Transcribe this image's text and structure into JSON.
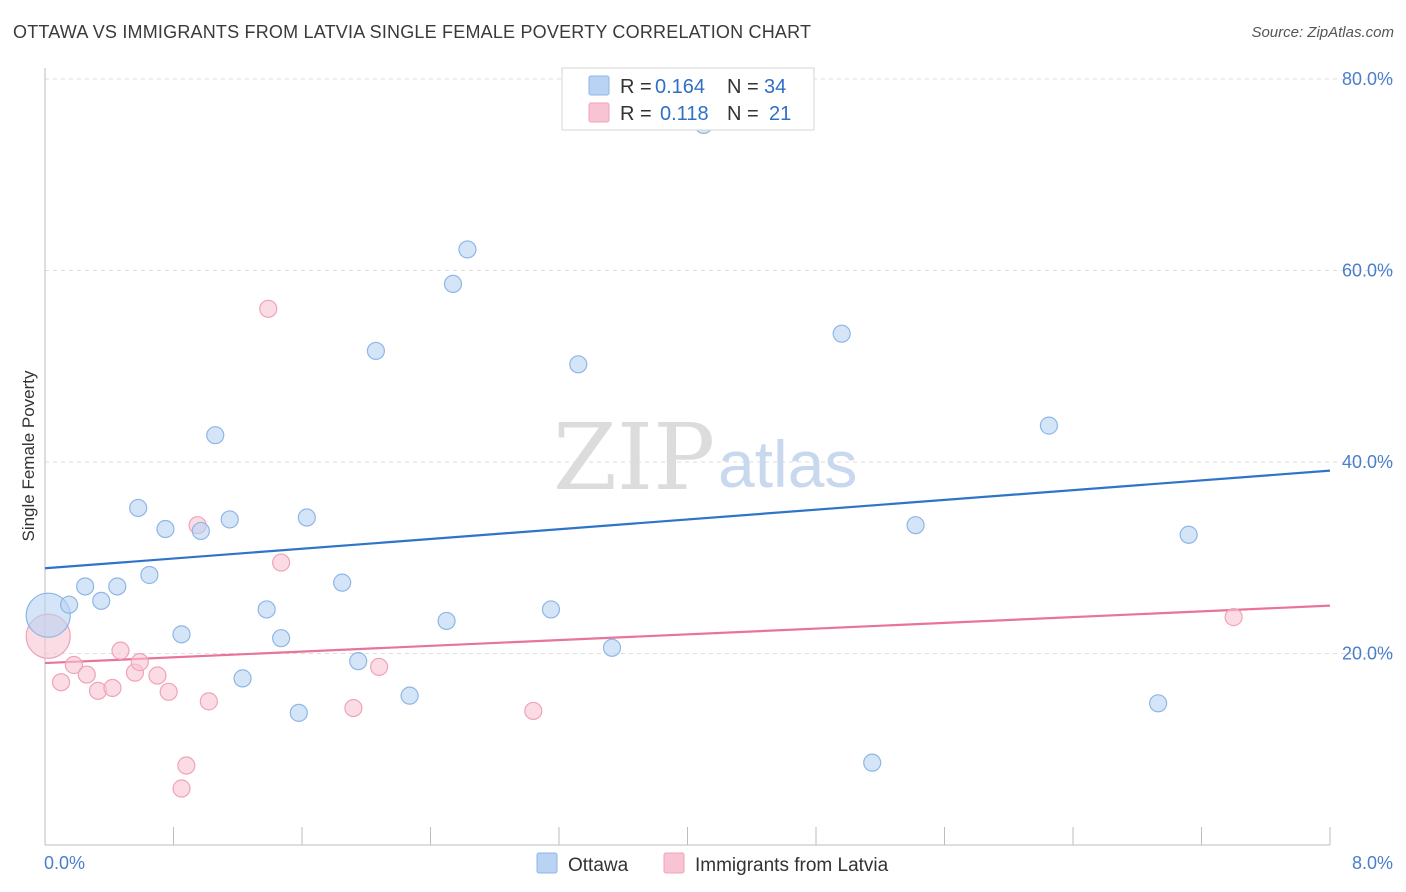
{
  "title": "OTTAWA VS IMMIGRANTS FROM LATVIA SINGLE FEMALE POVERTY CORRELATION CHART",
  "source": "Source: ZipAtlas.com",
  "watermark": {
    "zip": "ZIP",
    "atlas": "atlas"
  },
  "colors": {
    "blue_fill": "#b8d3f3",
    "blue_stroke": "#8fb6e6",
    "blue_line": "#2f74c9",
    "pink_fill": "#f8c4d3",
    "pink_stroke": "#f0a3b8",
    "pink_line": "#e8749a",
    "tick_text": "#4a7ecb",
    "grid": "#dddddd"
  },
  "legend": {
    "rows": [
      {
        "r_label": "R =",
        "r_value": "0.164",
        "n_label": "N =",
        "n_value": "34"
      },
      {
        "r_label": "R =",
        "r_value": "0.118",
        "n_label": "N =",
        "n_value": "21"
      }
    ]
  },
  "bottom_legend": [
    {
      "label": "Ottawa"
    },
    {
      "label": "Immigrants from Latvia"
    }
  ],
  "chart_data": {
    "type": "scatter",
    "title": "OTTAWA VS IMMIGRANTS FROM LATVIA SINGLE FEMALE POVERTY CORRELATION CHART",
    "xlabel": "",
    "ylabel": "Single Female Poverty",
    "xlim": [
      0,
      8
    ],
    "ylim": [
      0,
      80
    ],
    "x_tick_labels": [
      "0.0%",
      "8.0%"
    ],
    "y_ticks": [
      20,
      40,
      60,
      80
    ],
    "y_tick_labels": [
      "20.0%",
      "40.0%",
      "60.0%",
      "80.0%"
    ],
    "grid": true,
    "legend_position": "top-center",
    "series": [
      {
        "name": "Ottawa",
        "r": 0.164,
        "n": 34,
        "trend": {
          "x0": 0,
          "y0": 28.9,
          "x1": 8,
          "y1": 39.1
        },
        "points": [
          {
            "x": 0.02,
            "y": 24.0,
            "big": true
          },
          {
            "x": 0.15,
            "y": 25.1
          },
          {
            "x": 0.25,
            "y": 27.0
          },
          {
            "x": 0.35,
            "y": 25.5
          },
          {
            "x": 0.45,
            "y": 27.0
          },
          {
            "x": 0.58,
            "y": 35.2
          },
          {
            "x": 0.65,
            "y": 28.2
          },
          {
            "x": 0.75,
            "y": 33.0
          },
          {
            "x": 0.85,
            "y": 22.0
          },
          {
            "x": 0.97,
            "y": 32.8
          },
          {
            "x": 1.06,
            "y": 42.8
          },
          {
            "x": 1.15,
            "y": 34.0
          },
          {
            "x": 1.23,
            "y": 17.4
          },
          {
            "x": 1.38,
            "y": 24.6
          },
          {
            "x": 1.47,
            "y": 21.6
          },
          {
            "x": 1.58,
            "y": 13.8
          },
          {
            "x": 1.63,
            "y": 34.2
          },
          {
            "x": 1.85,
            "y": 27.4
          },
          {
            "x": 1.95,
            "y": 19.2
          },
          {
            "x": 2.06,
            "y": 51.6
          },
          {
            "x": 2.27,
            "y": 15.6
          },
          {
            "x": 2.5,
            "y": 23.4
          },
          {
            "x": 2.54,
            "y": 58.6
          },
          {
            "x": 2.63,
            "y": 62.2
          },
          {
            "x": 3.15,
            "y": 24.6
          },
          {
            "x": 3.32,
            "y": 50.2
          },
          {
            "x": 3.53,
            "y": 20.6
          },
          {
            "x": 4.1,
            "y": 75.2
          },
          {
            "x": 4.96,
            "y": 53.4
          },
          {
            "x": 5.15,
            "y": 8.6
          },
          {
            "x": 5.42,
            "y": 33.4
          },
          {
            "x": 6.25,
            "y": 43.8
          },
          {
            "x": 6.93,
            "y": 14.8
          },
          {
            "x": 7.12,
            "y": 32.4
          }
        ]
      },
      {
        "name": "Immigrants from Latvia",
        "r": 0.118,
        "n": 21,
        "trend": {
          "x0": 0,
          "y0": 19.0,
          "x1": 8,
          "y1": 25.0
        },
        "points": [
          {
            "x": 0.02,
            "y": 21.8,
            "big": true
          },
          {
            "x": 0.1,
            "y": 17.0
          },
          {
            "x": 0.18,
            "y": 18.8
          },
          {
            "x": 0.26,
            "y": 17.8
          },
          {
            "x": 0.33,
            "y": 16.1
          },
          {
            "x": 0.42,
            "y": 16.4
          },
          {
            "x": 0.47,
            "y": 20.3
          },
          {
            "x": 0.56,
            "y": 18.0
          },
          {
            "x": 0.59,
            "y": 19.1
          },
          {
            "x": 0.7,
            "y": 17.7
          },
          {
            "x": 0.77,
            "y": 16.0
          },
          {
            "x": 0.88,
            "y": 8.3
          },
          {
            "x": 0.85,
            "y": 5.9
          },
          {
            "x": 0.95,
            "y": 33.4
          },
          {
            "x": 1.02,
            "y": 15.0
          },
          {
            "x": 1.39,
            "y": 56.0
          },
          {
            "x": 1.47,
            "y": 29.5
          },
          {
            "x": 1.92,
            "y": 14.3
          },
          {
            "x": 2.08,
            "y": 18.6
          },
          {
            "x": 3.04,
            "y": 14.0
          },
          {
            "x": 7.4,
            "y": 23.8
          }
        ]
      }
    ]
  }
}
